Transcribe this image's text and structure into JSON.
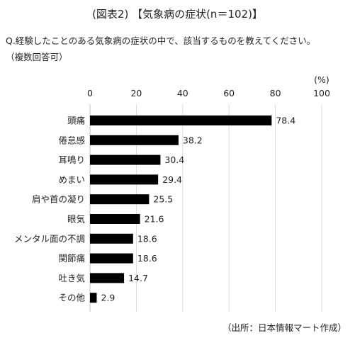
{
  "header": {
    "title": "(図表2) 【気象病の症状(n＝102)】",
    "question": "Q.経験したことのある気象病の症状の中で、該当するものを教えてください。",
    "note": "（複数回答可）"
  },
  "footer": {
    "source": "（出所：日本情報マート作成）"
  },
  "chart_data": {
    "type": "bar",
    "orientation": "horizontal",
    "unit_label": "(%)",
    "categories": [
      "頭痛",
      "倦怠感",
      "耳鳴り",
      "めまい",
      "肩や首の凝り",
      "眼気",
      "メンタル面の不調",
      "関節痛",
      "吐き気",
      "その他"
    ],
    "values": [
      78.4,
      38.2,
      30.4,
      29.4,
      25.5,
      21.6,
      18.6,
      18.6,
      14.7,
      2.9
    ],
    "value_labels": [
      "78.4",
      "38.2",
      "30.4",
      "29.4",
      "25.5",
      "21.6",
      "18.6",
      "18.6",
      "14.7",
      "2.9"
    ],
    "xlim": [
      0,
      100
    ],
    "xticks": [
      0,
      20,
      40,
      60,
      80,
      100
    ],
    "xtick_labels": [
      "0",
      "20",
      "40",
      "60",
      "80",
      "100"
    ],
    "grid": true,
    "bar_color": "#000000",
    "grid_color": "#d9d9d9"
  }
}
